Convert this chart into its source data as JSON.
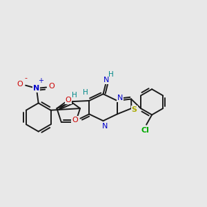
{
  "background_color": "#e8e8e8",
  "figsize": [
    3.0,
    3.0
  ],
  "dpi": 100,
  "colors": {
    "bond": "#1a1a1a",
    "N": "#0000cc",
    "S": "#aaaa00",
    "O": "#cc0000",
    "Cl": "#00aa00",
    "H": "#008888"
  },
  "bond_lw": 1.4
}
